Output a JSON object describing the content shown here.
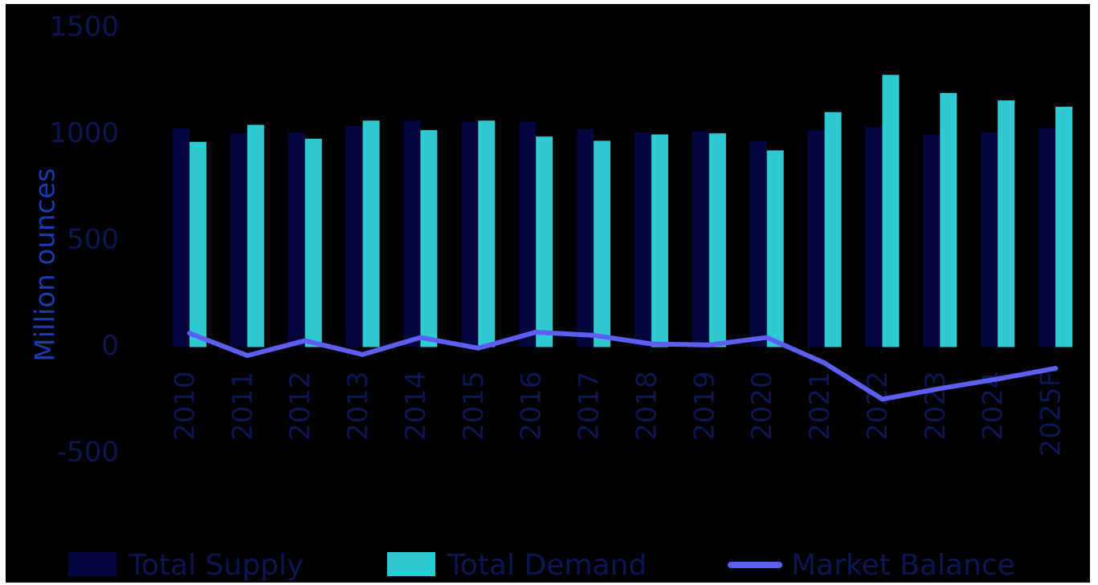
{
  "chart_data": {
    "type": "bar",
    "categories": [
      "2010",
      "2011",
      "2012",
      "2013",
      "2014",
      "2015",
      "2016",
      "2017",
      "2018",
      "2019",
      "2020",
      "2021",
      "2022",
      "2023",
      "2024",
      "2025F"
    ],
    "series": [
      {
        "name": "Total Supply",
        "type": "bar",
        "color": "#05063d",
        "values": [
          1030,
          1005,
          1010,
          1040,
          1065,
          1060,
          1060,
          1025,
          1010,
          1015,
          970,
          1020,
          1035,
          1000,
          1010,
          1030
        ]
      },
      {
        "name": "Total Demand",
        "type": "bar",
        "color": "#2ecad4",
        "values": [
          965,
          1045,
          980,
          1065,
          1020,
          1065,
          990,
          970,
          1000,
          1005,
          925,
          1105,
          1280,
          1195,
          1160,
          1130
        ]
      },
      {
        "name": "Market Balance",
        "type": "line",
        "color": "#5f5ef2",
        "values": [
          65,
          -40,
          30,
          -35,
          45,
          -5,
          70,
          55,
          15,
          10,
          45,
          -75,
          -245,
          -195,
          -150,
          -100
        ]
      }
    ],
    "ylabel": "Million ounces",
    "ylim": [
      -500,
      1500
    ],
    "yticks": [
      "1500",
      "1000",
      "500",
      "0",
      "-500"
    ],
    "ytick_values": [
      1500,
      1000,
      500,
      0,
      -500
    ],
    "grid": false,
    "legend_position": "bottom"
  }
}
